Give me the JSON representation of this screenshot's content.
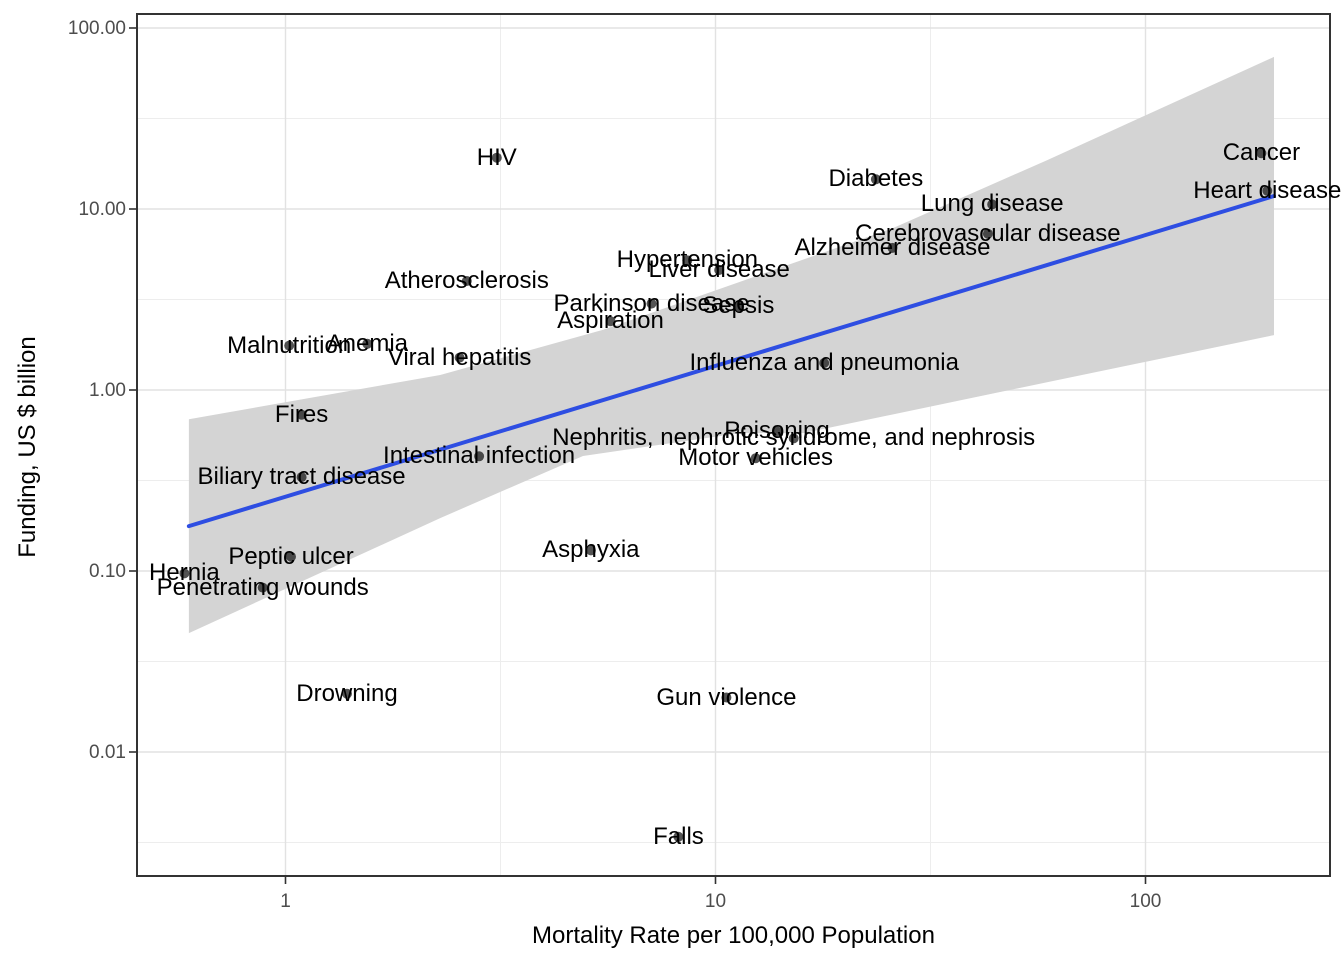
{
  "chart_data": {
    "type": "scatter",
    "title": "",
    "xlabel": "Mortality Rate per 100,000 Population",
    "ylabel": "Funding, US $ billion",
    "x_scale": "log10",
    "y_scale": "log10",
    "xlim": [
      0.45,
      268
    ],
    "ylim": [
      0.002,
      123
    ],
    "grid": true,
    "legend": "none",
    "x_ticks": [
      1,
      10,
      100
    ],
    "x_tick_labels": [
      "1",
      "10",
      "100"
    ],
    "y_ticks": [
      100,
      10,
      1,
      0.1,
      0.01
    ],
    "y_tick_labels": [
      "100.00",
      "10.00",
      "1.00",
      "0.10",
      "0.01"
    ],
    "x_minor_gridlines": [
      3.162,
      31.62
    ],
    "y_minor_gridlines": [
      31.62,
      3.162,
      0.3162,
      0.03162,
      0.003162
    ],
    "point_color": "#111111",
    "point_opacity": 0.72,
    "points": [
      {
        "label": "HIV",
        "mortality": 3.1,
        "funding": 19.2
      },
      {
        "label": "Cancer",
        "mortality": 186,
        "funding": 20.3
      },
      {
        "label": "Heart disease",
        "mortality": 192,
        "funding": 12.6
      },
      {
        "label": "Diabetes",
        "mortality": 23.6,
        "funding": 14.6
      },
      {
        "label": "Lung disease",
        "mortality": 44,
        "funding": 10.6
      },
      {
        "label": "Cerebrovascular disease",
        "mortality": 43,
        "funding": 7.3
      },
      {
        "label": "Alzheimer disease",
        "mortality": 25.8,
        "funding": 6.1
      },
      {
        "label": "Hypertension",
        "mortality": 8.6,
        "funding": 5.2
      },
      {
        "label": "Liver disease",
        "mortality": 10.2,
        "funding": 4.6
      },
      {
        "label": "Sepsis",
        "mortality": 11.3,
        "funding": 2.9
      },
      {
        "label": "Parkinson disease",
        "mortality": 7.1,
        "funding": 3.0
      },
      {
        "label": "Aspiration",
        "mortality": 5.7,
        "funding": 2.4
      },
      {
        "label": "Atherosclerosis",
        "mortality": 2.64,
        "funding": 4.0
      },
      {
        "label": "Malnutrition",
        "mortality": 1.02,
        "funding": 1.76
      },
      {
        "label": "Anemia",
        "mortality": 1.55,
        "funding": 1.8
      },
      {
        "label": "Viral hepatitis",
        "mortality": 2.54,
        "funding": 1.51
      },
      {
        "label": "Influenza and pneumonia",
        "mortality": 17.9,
        "funding": 1.41
      },
      {
        "label": "Fires",
        "mortality": 1.09,
        "funding": 0.73
      },
      {
        "label": "Nephritis, nephrotic syndrome, and nephrosis",
        "mortality": 15.2,
        "funding": 0.54
      },
      {
        "label": "Poisoning",
        "mortality": 13.9,
        "funding": 0.59
      },
      {
        "label": "Motor vehicles",
        "mortality": 12.4,
        "funding": 0.42
      },
      {
        "label": "Intestinal infection",
        "mortality": 2.82,
        "funding": 0.43
      },
      {
        "label": "Biliary tract disease",
        "mortality": 1.09,
        "funding": 0.33
      },
      {
        "label": "Peptic ulcer",
        "mortality": 1.03,
        "funding": 0.12
      },
      {
        "label": "Asphyxia",
        "mortality": 5.13,
        "funding": 0.13
      },
      {
        "label": "Hernia",
        "mortality": 0.582,
        "funding": 0.097
      },
      {
        "label": "Penetrating wounds",
        "mortality": 0.885,
        "funding": 0.081
      },
      {
        "label": "Drowning",
        "mortality": 1.39,
        "funding": 0.021
      },
      {
        "label": "Gun violence",
        "mortality": 10.6,
        "funding": 0.02
      },
      {
        "label": "Falls",
        "mortality": 8.2,
        "funding": 0.0034
      }
    ],
    "trend_line": {
      "color": "#2e4ee2",
      "x": [
        0.596,
        199
      ],
      "y": [
        0.177,
        11.8
      ]
    },
    "ci_band": {
      "color": "#d4d4d4",
      "upper": [
        [
          0.596,
          0.69
        ],
        [
          2.29,
          1.21
        ],
        [
          5.48,
          2.15
        ],
        [
          25.9,
          7.85
        ],
        [
          59,
          18.6
        ],
        [
          199,
          69.2
        ]
      ],
      "lower": [
        [
          0.596,
          0.0454
        ],
        [
          2.29,
          0.196
        ],
        [
          4.92,
          0.432
        ],
        [
          11.4,
          0.578
        ],
        [
          16,
          0.578
        ],
        [
          45.9,
          0.975
        ],
        [
          199,
          2.01
        ]
      ]
    },
    "colors": {
      "background": "#ffffff",
      "panel_border": "#333333",
      "major_gridline": "#e2e2e2",
      "minor_gridline": "#ededed",
      "tick_mark": "#333333",
      "tick_label": "#4d4d4d",
      "axis_title": "#000000",
      "point_label": "#000000"
    }
  }
}
